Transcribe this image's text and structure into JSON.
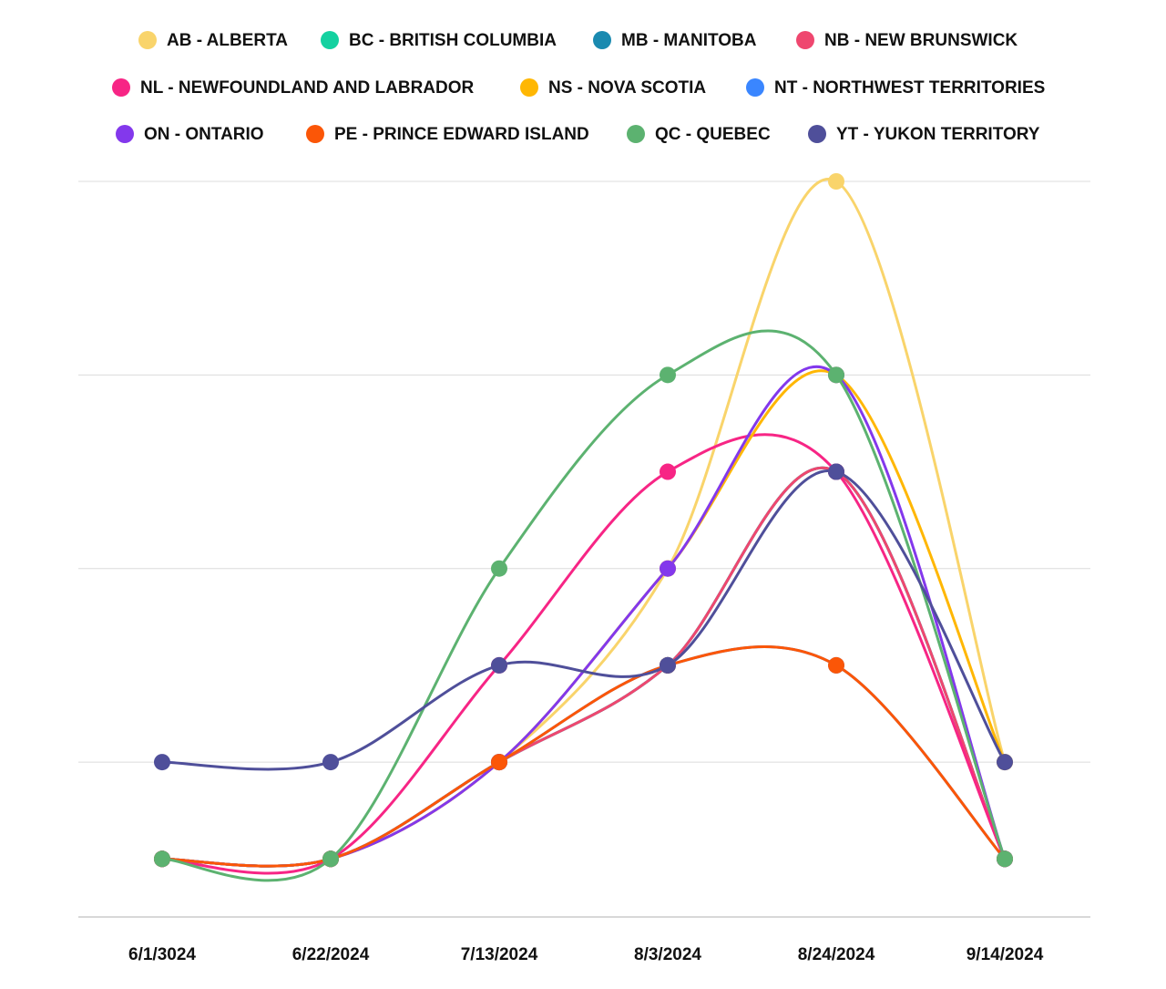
{
  "chart_data": {
    "type": "line",
    "x": [
      "6/1/3024",
      "6/22/2024",
      "7/13/2024",
      "8/3/2024",
      "8/24/2024",
      "9/14/2024"
    ],
    "ylim": [
      0.4,
      8
    ],
    "yticks": [
      2,
      4,
      6,
      8
    ],
    "grid": true,
    "legend": "top",
    "curve": "smooth",
    "series": [
      {
        "name": "AB - ALBERTA",
        "color": "#f9d46b",
        "values": [
          1,
          1,
          2,
          4,
          8,
          2
        ]
      },
      {
        "name": "BC - BRITISH COLUMBIA",
        "color": "#14d1a0",
        "values": [
          1,
          1,
          2,
          3,
          5,
          1
        ]
      },
      {
        "name": "MB - MANITOBA",
        "color": "#1a8ab0",
        "values": [
          1,
          1,
          2,
          3,
          5,
          1
        ]
      },
      {
        "name": "NB - NEW BRUNSWICK",
        "color": "#ef476f",
        "values": [
          1,
          1,
          2,
          3,
          5,
          1
        ]
      },
      {
        "name": "NL - NEWFOUNDLAND AND LABRADOR",
        "color": "#f72585",
        "values": [
          1,
          1,
          3,
          5,
          5,
          1
        ]
      },
      {
        "name": "NS - NOVA SCOTIA",
        "color": "#ffb703",
        "values": [
          1,
          1,
          2,
          4,
          6,
          2
        ]
      },
      {
        "name": "NT - NORTHWEST TERRITORIES",
        "color": "#3a86ff",
        "values": [
          1,
          1,
          2,
          3,
          3,
          1
        ]
      },
      {
        "name": "ON - ONTARIO",
        "color": "#8338ec",
        "values": [
          1,
          1,
          2,
          4,
          6,
          1
        ]
      },
      {
        "name": "PE - PRINCE EDWARD ISLAND",
        "color": "#fb5607",
        "values": [
          1,
          1,
          2,
          3,
          3,
          1
        ]
      },
      {
        "name": "QC - QUEBEC",
        "color": "#5cb270",
        "values": [
          1,
          1,
          4,
          6,
          6,
          1
        ]
      },
      {
        "name": "YT - YUKON TERRITORY",
        "color": "#4f4f9a",
        "values": [
          2,
          2,
          3,
          3,
          5,
          2
        ]
      }
    ]
  }
}
